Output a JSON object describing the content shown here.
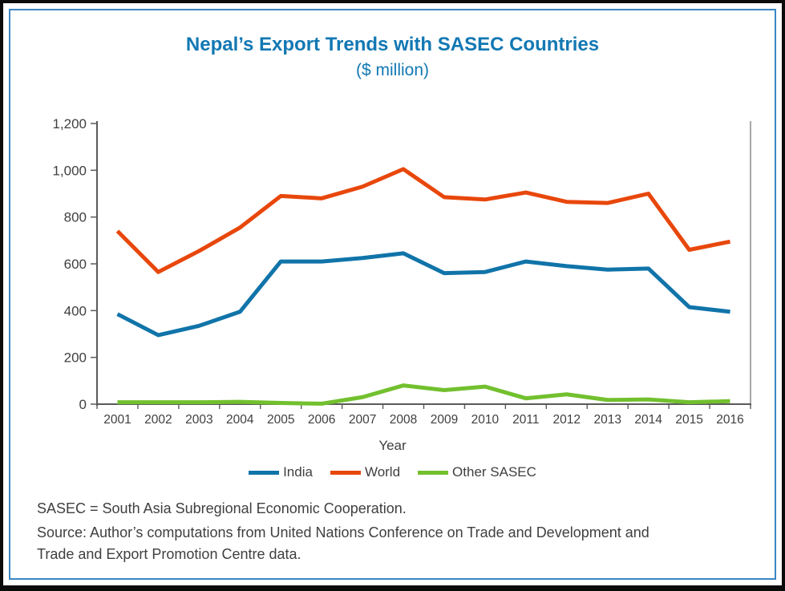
{
  "colors": {
    "title": "#1278B3",
    "inner_border": "#3A87C4",
    "axis": "#5A5A5A",
    "tick_label": "#3F3F3F",
    "india_blue": "#1074A9",
    "world_red": "#E8470C",
    "other_sasec_green": "#72C02E"
  },
  "header": {
    "title": "Nepal’s Export Trends with SASEC Countries",
    "subtitle": "($ million)"
  },
  "chart_data": {
    "type": "line",
    "title": "Nepal’s Export Trends with SASEC Countries",
    "subtitle": "($ million)",
    "xlabel": "Year",
    "ylabel": "",
    "ylim": [
      0,
      1200
    ],
    "ytick_step": 200,
    "ytick_labels": [
      "0",
      "200",
      "400",
      "600",
      "800",
      "1,000",
      "1,200"
    ],
    "grid": false,
    "legend_position": "bottom",
    "categories": [
      "2001",
      "2002",
      "2003",
      "2004",
      "2005",
      "2006",
      "2007",
      "2008",
      "2009",
      "2010",
      "2011",
      "2012",
      "2013",
      "2014",
      "2015",
      "2016"
    ],
    "series": [
      {
        "name": "India",
        "color": "#1074A9",
        "values": [
          385,
          295,
          335,
          395,
          610,
          610,
          625,
          645,
          560,
          565,
          610,
          590,
          575,
          580,
          415,
          395
        ]
      },
      {
        "name": "World",
        "color": "#E8470C",
        "values": [
          740,
          565,
          655,
          755,
          890,
          880,
          930,
          1005,
          885,
          875,
          905,
          865,
          860,
          900,
          660,
          695
        ]
      },
      {
        "name": "Other SASEC",
        "color": "#72C02E",
        "values": [
          8,
          8,
          8,
          10,
          5,
          2,
          30,
          80,
          60,
          75,
          25,
          42,
          18,
          20,
          8,
          13
        ]
      }
    ]
  },
  "legend": {
    "items": [
      {
        "label": "India",
        "color": "#1074A9"
      },
      {
        "label": "World",
        "color": "#E8470C"
      },
      {
        "label": "Other SASEC",
        "color": "#72C02E"
      }
    ]
  },
  "footer": {
    "abbrev": "SASEC = South Asia Subregional Economic Cooperation.",
    "source_line1": "Source: Author’s computations from United Nations Conference on Trade and Development and",
    "source_line2": "Trade and Export Promotion Centre data."
  }
}
